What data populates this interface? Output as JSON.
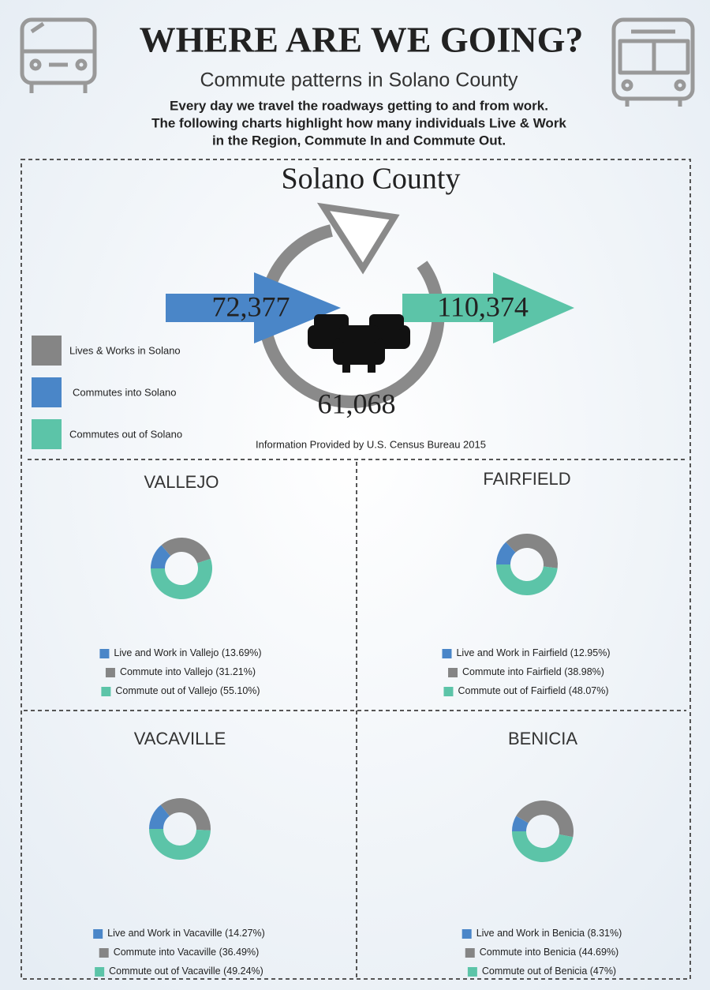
{
  "header": {
    "title": "WHERE ARE WE GOING?",
    "subtitle": "Commute patterns in Solano County",
    "description": [
      "Every day we travel the roadways getting to and from work.",
      "The following charts highlight how many individuals Live & Work",
      "in the Region, Commute In and Commute Out."
    ]
  },
  "summary": {
    "title": "Solano County",
    "commute_in": "72,377",
    "commute_out": "110,374",
    "live_work": "61,068",
    "legend": [
      {
        "label": "Lives & Works in Solano",
        "color": "#858585"
      },
      {
        "label": "Commutes into Solano",
        "color": "#4a86c8"
      },
      {
        "label": "Commutes out of Solano",
        "color": "#5cc4a8"
      }
    ],
    "source": "Information Provided by U.S. Census Bureau 2015"
  },
  "chart_data": [
    {
      "type": "donut",
      "title": "VALLEJO",
      "categories": [
        "Live and Work in Vallejo",
        "Commute into Vallejo",
        "Commute out of Vallejo"
      ],
      "values": [
        13.69,
        31.21,
        55.1
      ],
      "value_labels": [
        "(13.69%)",
        "(31.21%)",
        "(55.10%)"
      ],
      "colors": [
        "#4a86c8",
        "#858585",
        "#5cc4a8"
      ]
    },
    {
      "type": "donut",
      "title": "FAIRFIELD",
      "categories": [
        "Live and Work in Fairfield",
        "Commute into Fairfield",
        "Commute out of Fairfield"
      ],
      "values": [
        12.95,
        38.98,
        48.07
      ],
      "value_labels": [
        "(12.95%)",
        "(38.98%)",
        "(48.07%)"
      ],
      "colors": [
        "#4a86c8",
        "#858585",
        "#5cc4a8"
      ]
    },
    {
      "type": "donut",
      "title": "VACAVILLE",
      "categories": [
        "Live and Work in Vacaville",
        "Commute into Vacaville",
        "Commute out of Vacaville"
      ],
      "values": [
        14.27,
        36.49,
        49.24
      ],
      "value_labels": [
        "(14.27%)",
        "(36.49%)",
        "(49.24%)"
      ],
      "colors": [
        "#4a86c8",
        "#858585",
        "#5cc4a8"
      ]
    },
    {
      "type": "donut",
      "title": "BENICIA",
      "categories": [
        "Live and Work in Benicia",
        "Commute into Benicia",
        "Commute out of Benicia"
      ],
      "values": [
        8.31,
        44.69,
        47
      ],
      "value_labels": [
        "(8.31%)",
        "(44.69%)",
        "(47%)"
      ],
      "colors": [
        "#4a86c8",
        "#858585",
        "#5cc4a8"
      ]
    }
  ]
}
